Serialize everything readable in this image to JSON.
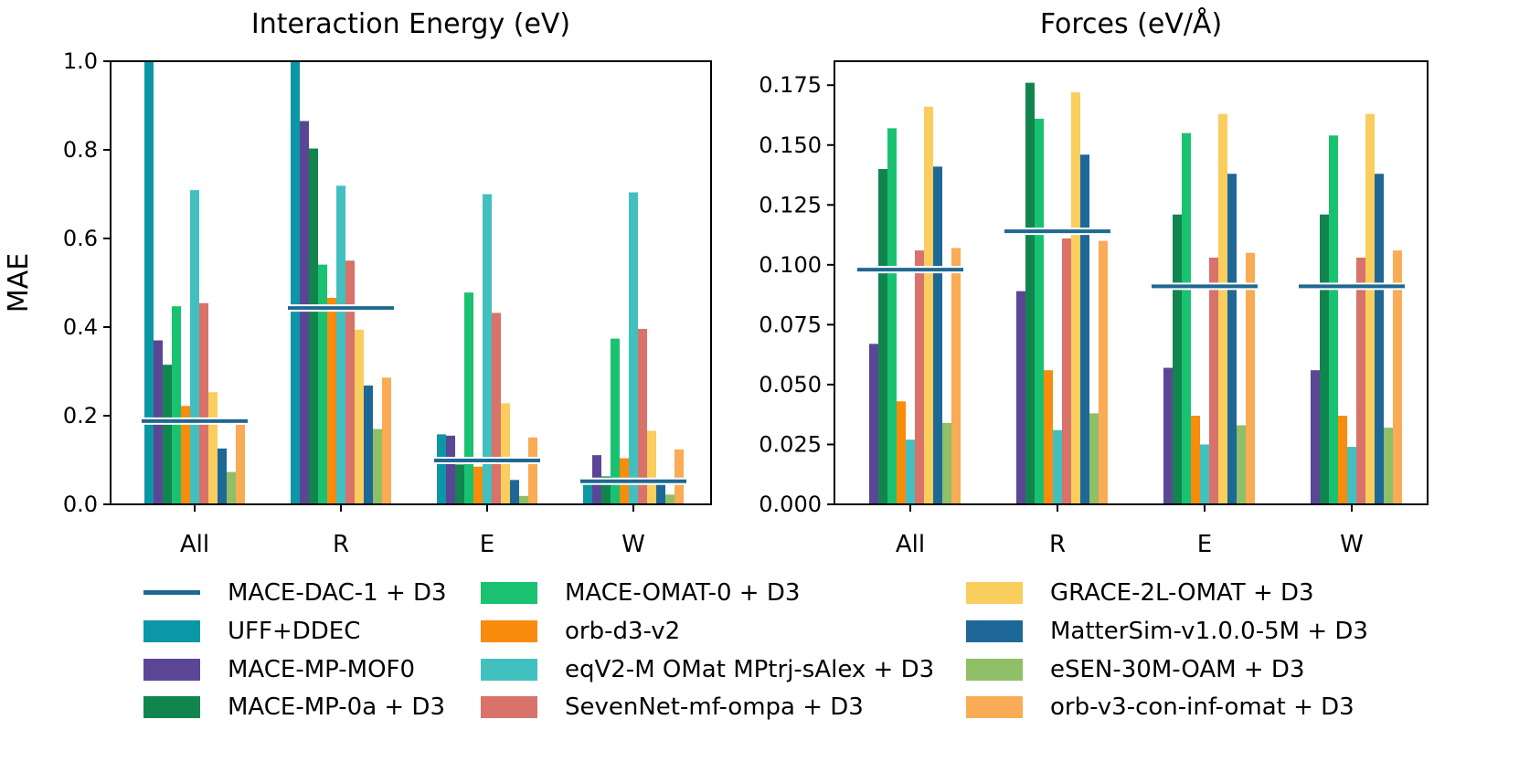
{
  "chart_data": [
    {
      "type": "bar",
      "title": "Interaction Energy (eV)",
      "xlabel": "",
      "ylabel": "MAE",
      "categories": [
        "All",
        "R",
        "E",
        "W"
      ],
      "ylim": [
        0,
        1.0
      ],
      "yticks": [
        "0.0",
        "0.2",
        "0.4",
        "0.6",
        "0.8",
        "1.0"
      ],
      "series": [
        {
          "name": "UFF+DDEC",
          "values": [
            1.0,
            1.0,
            0.158,
            0.055
          ]
        },
        {
          "name": "MACE-MP-MOF0",
          "values": [
            0.37,
            0.865,
            0.155,
            0.111
          ]
        },
        {
          "name": "MACE-MP-0a + D3",
          "values": [
            0.315,
            0.803,
            0.09,
            0.063
          ]
        },
        {
          "name": "MACE-OMAT-0 + D3",
          "values": [
            0.447,
            0.541,
            0.478,
            0.374
          ]
        },
        {
          "name": "orb-d3-v2",
          "values": [
            0.222,
            0.466,
            0.085,
            0.104
          ]
        },
        {
          "name": "eqV2-M OMat MPtrj-sAlex + D3",
          "values": [
            0.709,
            0.719,
            0.7,
            0.704
          ]
        },
        {
          "name": "SevenNet-mf-ompa + D3",
          "values": [
            0.454,
            0.55,
            0.432,
            0.396
          ]
        },
        {
          "name": "GRACE-2L-OMAT + D3",
          "values": [
            0.253,
            0.394,
            0.228,
            0.166
          ]
        },
        {
          "name": "MatterSim-v1.0.0-5M + D3",
          "values": [
            0.126,
            0.268,
            0.055,
            0.05
          ]
        },
        {
          "name": "eSEN-30M-OAM + D3",
          "values": [
            0.073,
            0.17,
            0.019,
            0.022
          ]
        },
        {
          "name": "orb-v3-con-inf-omat + D3",
          "values": [
            0.187,
            0.286,
            0.151,
            0.124
          ]
        }
      ],
      "reference_line": {
        "name": "MACE-DAC-1 + D3",
        "values": [
          0.188,
          0.443,
          0.099,
          0.052
        ]
      }
    },
    {
      "type": "bar",
      "title": "Forces (eV/Å)",
      "xlabel": "",
      "ylabel": "",
      "categories": [
        "All",
        "R",
        "E",
        "W"
      ],
      "ylim": [
        0,
        0.185
      ],
      "yticks": [
        "0.000",
        "0.025",
        "0.050",
        "0.075",
        "0.100",
        "0.125",
        "0.150",
        "0.175"
      ],
      "series": [
        {
          "name": "UFF+DDEC",
          "values": [
            0,
            0,
            0,
            0
          ]
        },
        {
          "name": "MACE-MP-MOF0",
          "values": [
            0.067,
            0.089,
            0.057,
            0.056
          ]
        },
        {
          "name": "MACE-MP-0a + D3",
          "values": [
            0.14,
            0.176,
            0.121,
            0.121
          ]
        },
        {
          "name": "MACE-OMAT-0 + D3",
          "values": [
            0.157,
            0.161,
            0.155,
            0.154
          ]
        },
        {
          "name": "orb-d3-v2",
          "values": [
            0.043,
            0.056,
            0.037,
            0.037
          ]
        },
        {
          "name": "eqV2-M OMat MPtrj-sAlex + D3",
          "values": [
            0.027,
            0.031,
            0.025,
            0.024
          ]
        },
        {
          "name": "SevenNet-mf-ompa + D3",
          "values": [
            0.106,
            0.111,
            0.103,
            0.103
          ]
        },
        {
          "name": "GRACE-2L-OMAT + D3",
          "values": [
            0.166,
            0.172,
            0.163,
            0.163
          ]
        },
        {
          "name": "MatterSim-v1.0.0-5M + D3",
          "values": [
            0.141,
            0.146,
            0.138,
            0.138
          ]
        },
        {
          "name": "eSEN-30M-OAM + D3",
          "values": [
            0.034,
            0.038,
            0.033,
            0.032
          ]
        },
        {
          "name": "orb-v3-con-inf-omat + D3",
          "values": [
            0.107,
            0.11,
            0.105,
            0.106
          ]
        }
      ],
      "reference_line": {
        "name": "MACE-DAC-1 + D3",
        "values": [
          0.098,
          0.114,
          0.091,
          0.091
        ]
      }
    }
  ],
  "legend": {
    "items": [
      {
        "label": "MACE-DAC-1 + D3",
        "kind": "line"
      },
      {
        "label": "UFF+DDEC",
        "kind": "bar"
      },
      {
        "label": "MACE-MP-MOF0",
        "kind": "bar"
      },
      {
        "label": "MACE-MP-0a + D3",
        "kind": "bar"
      },
      {
        "label": "MACE-OMAT-0 + D3",
        "kind": "bar"
      },
      {
        "label": "orb-d3-v2",
        "kind": "bar"
      },
      {
        "label": "eqV2-M OMat MPtrj-sAlex + D3",
        "kind": "bar"
      },
      {
        "label": "SevenNet-mf-ompa + D3",
        "kind": "bar"
      },
      {
        "label": "GRACE-2L-OMAT + D3",
        "kind": "bar"
      },
      {
        "label": "MatterSim-v1.0.0-5M + D3",
        "kind": "bar"
      },
      {
        "label": "eSEN-30M-OAM + D3",
        "kind": "bar"
      },
      {
        "label": "orb-v3-con-inf-omat + D3",
        "kind": "bar"
      }
    ]
  },
  "colors": {
    "MACE-DAC-1 + D3": "#1f6891",
    "UFF+DDEC": "#0b97a6",
    "MACE-MP-MOF0": "#5b4696",
    "MACE-MP-0a + D3": "#12854f",
    "MACE-OMAT-0 + D3": "#19c271",
    "orb-d3-v2": "#f98b0d",
    "eqV2-M OMat MPtrj-sAlex + D3": "#42c0bf",
    "SevenNet-mf-ompa + D3": "#d8726a",
    "GRACE-2L-OMAT + D3": "#f9ce5d",
    "MatterSim-v1.0.0-5M + D3": "#1e6898",
    "eSEN-30M-OAM + D3": "#8fbf67",
    "orb-v3-con-inf-omat + D3": "#f9ab55"
  }
}
